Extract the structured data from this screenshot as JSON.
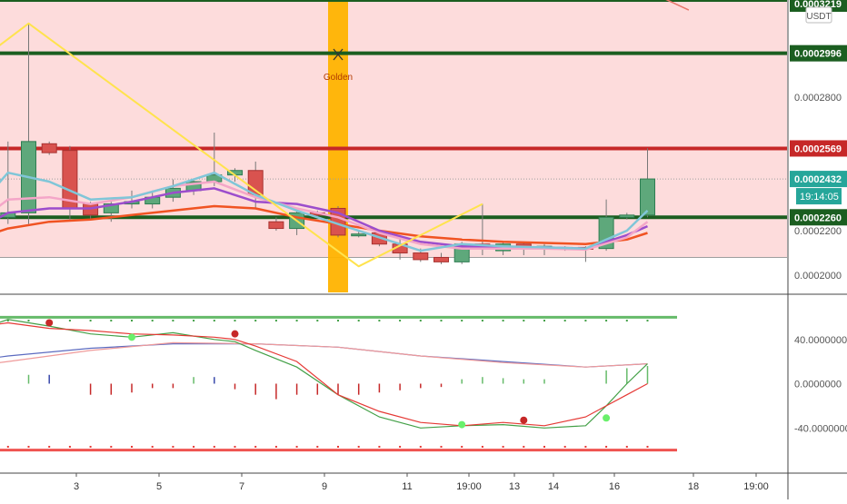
{
  "chart_data": [
    {
      "type": "candlestick",
      "pane": "price",
      "currency": "USDT",
      "y_axis_ticks": [
        "0.0003219",
        "0.0002996",
        "0.0002800",
        "0.0002569",
        "0.0002432",
        "0.0002260",
        "0.0002200",
        "0.0002000"
      ],
      "ylim": [
        0.0001923,
        0.0003235
      ],
      "x_ticks": [
        "3",
        "5",
        "7",
        "9",
        "11",
        "19:00",
        "13",
        "14",
        "16",
        "18",
        "19:00"
      ],
      "price_labels": [
        {
          "id": "top",
          "text": "0.0003219",
          "value": 0.0003219,
          "color": "#1b5e20"
        },
        {
          "id": "line2996",
          "text": "0.0002996",
          "value": 0.0002996,
          "color": "#1b5e20"
        },
        {
          "id": "line2569",
          "text": "0.0002569",
          "value": 0.0002569,
          "color": "#c62828"
        },
        {
          "id": "last",
          "text": "0.0002432",
          "value": 0.0002432,
          "color": "#26a69a"
        },
        {
          "id": "line2260",
          "text": "0.0002260",
          "value": 0.000226,
          "color": "#1b5e20"
        }
      ],
      "countdown": "19:14:05",
      "horizontal_lines": [
        {
          "value": 0.0003235,
          "color": "#1b5e20"
        },
        {
          "value": 0.0002996,
          "color": "#1b5e20"
        },
        {
          "value": 0.0002569,
          "color": "#c62828"
        },
        {
          "value": 0.000226,
          "color": "#1b5e20"
        }
      ],
      "zone": {
        "top": 0.0003235,
        "bottom": 0.000208,
        "color": "#fddcdc"
      },
      "highlight_bar": {
        "x": 10,
        "label": "Golden"
      },
      "candles": [
        {
          "x": 0.5,
          "o": 0.000215,
          "h": 0.000218,
          "l": 0.000212,
          "c": 0.000217
        },
        {
          "x": 1.0,
          "o": 0.000211,
          "h": 0.000232,
          "l": 0.000209,
          "c": 0.000227
        },
        {
          "x": 1.5,
          "o": 0.000226,
          "h": 0.000227,
          "l": 0.000225,
          "c": 0.0002265
        },
        {
          "x": 2.0,
          "o": 0.000226,
          "h": 0.00026,
          "l": 0.000223,
          "c": 0.000228
        },
        {
          "x": 2.5,
          "o": 0.000228,
          "h": 0.000313,
          "l": 0.000223,
          "c": 0.00026
        },
        {
          "x": 3.0,
          "o": 0.000259,
          "h": 0.00026,
          "l": 0.000254,
          "c": 0.000255
        },
        {
          "x": 3.5,
          "o": 0.000256,
          "h": 0.000258,
          "l": 0.000225,
          "c": 0.00023
        },
        {
          "x": 4.0,
          "o": 0.000232,
          "h": 0.000233,
          "l": 0.000225,
          "c": 0.000227
        },
        {
          "x": 4.5,
          "o": 0.000228,
          "h": 0.000233,
          "l": 0.000224,
          "c": 0.000232
        },
        {
          "x": 5.0,
          "o": 0.000232,
          "h": 0.000238,
          "l": 0.00023,
          "c": 0.000233
        },
        {
          "x": 5.5,
          "o": 0.000232,
          "h": 0.000238,
          "l": 0.00023,
          "c": 0.000235
        },
        {
          "x": 6.0,
          "o": 0.000235,
          "h": 0.000243,
          "l": 0.000233,
          "c": 0.000239
        },
        {
          "x": 6.5,
          "o": 0.000238,
          "h": 0.000243,
          "l": 0.000236,
          "c": 0.000242
        },
        {
          "x": 7.0,
          "o": 0.000242,
          "h": 0.000264,
          "l": 0.00024,
          "c": 0.000245
        },
        {
          "x": 7.5,
          "o": 0.000245,
          "h": 0.000248,
          "l": 0.000242,
          "c": 0.000247
        },
        {
          "x": 8.0,
          "o": 0.000247,
          "h": 0.000251,
          "l": 0.00023,
          "c": 0.000236
        },
        {
          "x": 8.5,
          "o": 0.000224,
          "h": 0.000226,
          "l": 0.00022,
          "c": 0.000221
        },
        {
          "x": 9.0,
          "o": 0.000221,
          "h": 0.000229,
          "l": 0.000218,
          "c": 0.000228
        },
        {
          "x": 9.5,
          "o": 0.000228,
          "h": 0.000229,
          "l": 0.000226,
          "c": 0.000227
        },
        {
          "x": 10.0,
          "o": 0.00023,
          "h": 0.000231,
          "l": 0.000217,
          "c": 0.000218
        },
        {
          "x": 10.5,
          "o": 0.000218,
          "h": 0.00022,
          "l": 0.000217,
          "c": 0.0002185
        },
        {
          "x": 11.0,
          "o": 0.000219,
          "h": 0.00022,
          "l": 0.000213,
          "c": 0.000214
        },
        {
          "x": 11.5,
          "o": 0.000214,
          "h": 0.000217,
          "l": 0.000207,
          "c": 0.00021
        },
        {
          "x": 12.0,
          "o": 0.00021,
          "h": 0.000212,
          "l": 0.000206,
          "c": 0.000207
        },
        {
          "x": 12.5,
          "o": 0.000208,
          "h": 0.00021,
          "l": 0.000205,
          "c": 0.000206
        },
        {
          "x": 13.0,
          "o": 0.000206,
          "h": 0.000215,
          "l": 0.000205,
          "c": 0.000214
        },
        {
          "x": 13.5,
          "o": 0.000214,
          "h": 0.000232,
          "l": 0.000209,
          "c": 0.000212
        },
        {
          "x": 14.0,
          "o": 0.000211,
          "h": 0.000215,
          "l": 0.000209,
          "c": 0.000214
        },
        {
          "x": 14.5,
          "o": 0.000214,
          "h": 0.000215,
          "l": 0.000209,
          "c": 0.000212
        },
        {
          "x": 15.0,
          "o": 0.000212,
          "h": 0.000214,
          "l": 0.000209,
          "c": 0.000213
        },
        {
          "x": 15.5,
          "o": 0.000212,
          "h": 0.000213,
          "l": 0.000211,
          "c": 0.0002125
        },
        {
          "x": 16.0,
          "o": 0.0002125,
          "h": 0.000213,
          "l": 0.000206,
          "c": 0.000212
        },
        {
          "x": 16.5,
          "o": 0.000212,
          "h": 0.000234,
          "l": 0.000211,
          "c": 0.000226
        },
        {
          "x": 17.0,
          "o": 0.000226,
          "h": 0.000228,
          "l": 0.000225,
          "c": 0.000227
        },
        {
          "x": 17.5,
          "o": 0.000227,
          "h": 0.000257,
          "l": 0.000226,
          "c": 0.0002432
        }
      ],
      "series": [
        {
          "color": "#f05322",
          "x": [
            0,
            1,
            2,
            3,
            4,
            5,
            6,
            7,
            8,
            9,
            10,
            11,
            12,
            13,
            14,
            15,
            16,
            17,
            17.5
          ],
          "values": [
            0.000212,
            0.000215,
            0.000221,
            0.000224,
            0.000225,
            0.000227,
            0.000229,
            0.000231,
            0.00023,
            0.000226,
            0.000223,
            0.00022,
            0.0002175,
            0.000216,
            0.000215,
            0.0002145,
            0.000214,
            0.000216,
            0.000219
          ]
        },
        {
          "color": "#9c4dcc",
          "x": [
            0,
            1,
            2,
            3,
            4,
            5,
            6,
            7,
            8,
            9,
            10,
            11,
            12,
            13,
            14,
            15,
            16,
            17,
            17.5
          ],
          "values": [
            0.000214,
            0.000218,
            0.000228,
            0.00023,
            0.00023,
            0.000233,
            0.000237,
            0.000239,
            0.000233,
            0.000232,
            0.000228,
            0.00022,
            0.000215,
            0.000213,
            0.0002125,
            0.0002125,
            0.000212,
            0.000218,
            0.000222
          ]
        },
        {
          "color": "#f4a6c8",
          "x": [
            0,
            1,
            2,
            3,
            4,
            5,
            6,
            7,
            8,
            9,
            10,
            11,
            12,
            13,
            14,
            15,
            16,
            17,
            17.5
          ],
          "values": [
            0.000215,
            0.00022,
            0.000234,
            0.000235,
            0.000232,
            0.000235,
            0.00024,
            0.000242,
            0.000235,
            0.00023,
            0.000226,
            0.000219,
            0.000214,
            0.000212,
            0.000212,
            0.000212,
            0.0002115,
            0.000217,
            0.000224
          ]
        },
        {
          "color": "#80c6d8",
          "x": [
            0,
            1,
            2,
            3,
            4,
            5,
            6,
            7,
            8,
            9,
            10,
            11,
            12,
            13,
            14,
            15,
            16,
            17,
            17.5
          ],
          "values": [
            0.000216,
            0.000225,
            0.000246,
            0.000242,
            0.000234,
            0.000235,
            0.00024,
            0.000246,
            0.000236,
            0.000229,
            0.000223,
            0.000217,
            0.000211,
            0.000214,
            0.000213,
            0.0002125,
            0.000212,
            0.00022,
            0.000229
          ]
        },
        {
          "color": "#ffe34d",
          "x": [
            0,
            2.5,
            10.5,
            13.5
          ],
          "values": [
            0.000278,
            0.000313,
            0.000204,
            0.000232
          ]
        }
      ],
      "trend_line": {
        "color": "#e8756a",
        "x": [
          17.8,
          18.5
        ],
        "values": [
          0.000325,
          0.000319
        ]
      }
    },
    {
      "type": "oscillator",
      "pane": "indicator",
      "y_axis_ticks": [
        "40.0000000",
        "0.0000000",
        "-40.0000000"
      ],
      "ylim": [
        -80,
        80
      ],
      "bands": [
        {
          "value": 60,
          "color": "#66bb6a"
        },
        {
          "value": -60,
          "color": "#ef5350"
        }
      ],
      "series": [
        {
          "color": "#5c6bc0",
          "x": [
            0,
            2,
            4,
            6,
            8,
            10,
            12,
            14,
            16,
            17.5
          ],
          "values": [
            15,
            25,
            32,
            36,
            36,
            33,
            25,
            20,
            15,
            18
          ]
        },
        {
          "color": "#ef9a9a",
          "x": [
            0,
            2,
            4,
            6,
            8,
            10,
            12,
            14,
            16,
            17.5
          ],
          "values": [
            10,
            20,
            30,
            37,
            36,
            33,
            25,
            19,
            15,
            18
          ]
        },
        {
          "color": "#43a047",
          "x": [
            0,
            1,
            2,
            3,
            4,
            5,
            6,
            7,
            7.5,
            8,
            9,
            10,
            11,
            12,
            13,
            14,
            15,
            16,
            16.5,
            17,
            17.5
          ],
          "values": [
            40,
            45,
            58,
            52,
            45,
            42,
            46,
            40,
            38,
            30,
            15,
            -10,
            -30,
            -40,
            -38,
            -37,
            -40,
            -38,
            -20,
            0,
            18
          ]
        },
        {
          "color": "#e53935",
          "x": [
            0,
            1,
            2,
            3,
            4,
            5,
            6,
            7,
            7.5,
            8,
            9,
            10,
            11,
            12,
            13,
            14,
            15,
            16,
            16.5,
            17,
            17.5
          ],
          "values": [
            45,
            50,
            55,
            50,
            48,
            45,
            44,
            42,
            40,
            34,
            20,
            -10,
            -25,
            -35,
            -38,
            -35,
            -38,
            -30,
            -20,
            -10,
            0
          ]
        }
      ],
      "histogram": [
        {
          "x": 1.5,
          "v": 6,
          "color": "#66bb6a"
        },
        {
          "x": 2.5,
          "v": 8,
          "color": "#66bb6a"
        },
        {
          "x": 3.0,
          "v": 8,
          "color": "#3949ab"
        },
        {
          "x": 4.0,
          "v": -10,
          "color": "#c62828"
        },
        {
          "x": 4.5,
          "v": -10,
          "color": "#c62828"
        },
        {
          "x": 5.0,
          "v": -8,
          "color": "#c62828"
        },
        {
          "x": 5.5,
          "v": -4,
          "color": "#c62828"
        },
        {
          "x": 6.0,
          "v": -4,
          "color": "#c62828"
        },
        {
          "x": 6.5,
          "v": 6,
          "color": "#66bb6a"
        },
        {
          "x": 7.0,
          "v": 6,
          "color": "#3949ab"
        },
        {
          "x": 7.5,
          "v": -5,
          "color": "#c62828"
        },
        {
          "x": 8.0,
          "v": -10,
          "color": "#c62828"
        },
        {
          "x": 8.5,
          "v": -14,
          "color": "#c62828"
        },
        {
          "x": 9.0,
          "v": -10,
          "color": "#c62828"
        },
        {
          "x": 9.5,
          "v": -10,
          "color": "#c62828"
        },
        {
          "x": 10.0,
          "v": -10,
          "color": "#c62828"
        },
        {
          "x": 10.5,
          "v": -10,
          "color": "#c62828"
        },
        {
          "x": 11.0,
          "v": -8,
          "color": "#c62828"
        },
        {
          "x": 11.5,
          "v": -6,
          "color": "#c62828"
        },
        {
          "x": 12.0,
          "v": -4,
          "color": "#c62828"
        },
        {
          "x": 12.5,
          "v": -3,
          "color": "#c62828"
        },
        {
          "x": 13.0,
          "v": 4,
          "color": "#66bb6a"
        },
        {
          "x": 13.5,
          "v": 6,
          "color": "#66bb6a"
        },
        {
          "x": 14.0,
          "v": 5,
          "color": "#66bb6a"
        },
        {
          "x": 14.5,
          "v": 4,
          "color": "#66bb6a"
        },
        {
          "x": 15.0,
          "v": 4,
          "color": "#66bb6a"
        },
        {
          "x": 16.5,
          "v": 12,
          "color": "#66bb6a"
        },
        {
          "x": 17.0,
          "v": 14,
          "color": "#66bb6a"
        },
        {
          "x": 17.5,
          "v": 16,
          "color": "#66bb6a"
        }
      ],
      "cross_dots": [
        {
          "x": 1.0,
          "v": 45,
          "color": "#69f06b"
        },
        {
          "x": 3.0,
          "v": 55,
          "color": "#c62828"
        },
        {
          "x": 5.0,
          "v": 42,
          "color": "#69f06b"
        },
        {
          "x": 7.5,
          "v": 45,
          "color": "#c62828"
        },
        {
          "x": 13.0,
          "v": -37,
          "color": "#69f06b"
        },
        {
          "x": 14.5,
          "v": -33,
          "color": "#c62828"
        },
        {
          "x": 16.5,
          "v": -31,
          "color": "#69f06b"
        }
      ]
    }
  ]
}
